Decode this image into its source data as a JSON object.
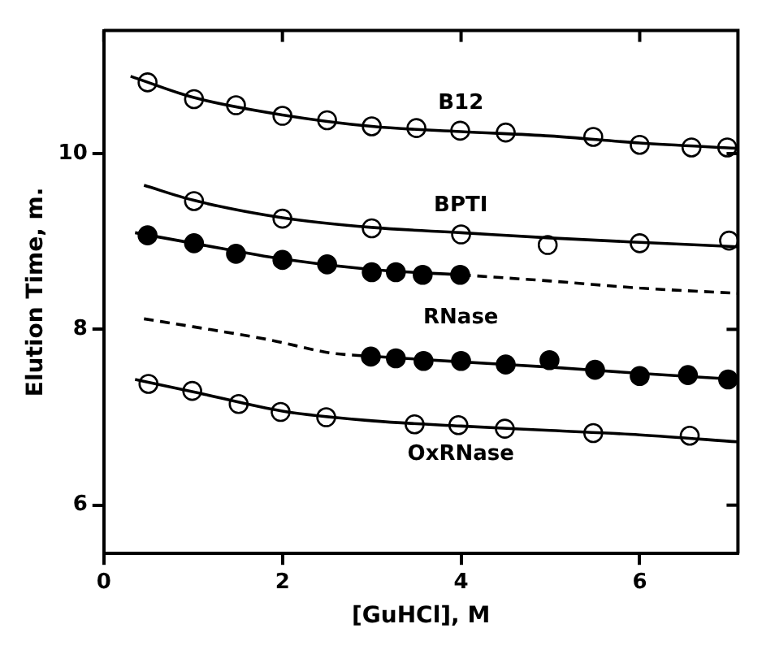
{
  "chart_data": {
    "type": "scatter",
    "xlabel": "[GuHCl], M",
    "ylabel": "Elution Time, m.",
    "xlim": [
      0,
      7.1
    ],
    "ylim": [
      5.45,
      11.4
    ],
    "xticks": [
      0,
      2,
      4,
      6
    ],
    "yticks": [
      6,
      8,
      10
    ],
    "grid": false,
    "legend": false,
    "marker": "circle",
    "series": [
      {
        "type": "scatter",
        "color": "#ffffff",
        "x": [
          0.49,
          1.01,
          1.48,
          2.0,
          2.5,
          3.0,
          3.5,
          3.99,
          4.5,
          5.48,
          6.0,
          6.58,
          6.98
        ],
        "values": [
          10.81,
          10.62,
          10.55,
          10.43,
          10.38,
          10.31,
          10.29,
          10.26,
          10.24,
          10.19,
          10.1,
          10.07,
          10.07
        ]
      },
      {
        "type": "scatter",
        "color": "#ffffff",
        "x": [
          1.01,
          2.0,
          3.0,
          4.0,
          4.97,
          6.0,
          7.0
        ],
        "values": [
          9.46,
          9.26,
          9.15,
          9.08,
          8.96,
          8.98,
          9.01
        ]
      },
      {
        "type": "scatter",
        "color": "#000000",
        "x": [
          0.49,
          1.01,
          1.48,
          2.0,
          2.5,
          3.0,
          3.27,
          3.57,
          3.99
        ],
        "values": [
          9.07,
          8.98,
          8.86,
          8.79,
          8.74,
          8.65,
          8.65,
          8.62,
          8.62
        ]
      },
      {
        "type": "scatter",
        "color": "#000000",
        "x": [
          2.99,
          3.27,
          3.58,
          4.0,
          4.5,
          4.99,
          5.5,
          6.0,
          6.54,
          6.99
        ],
        "values": [
          7.69,
          7.67,
          7.64,
          7.64,
          7.6,
          7.65,
          7.54,
          7.47,
          7.48,
          7.43
        ]
      },
      {
        "type": "scatter",
        "color": "#ffffff",
        "x": [
          0.5,
          0.99,
          1.51,
          1.98,
          2.49,
          3.48,
          3.97,
          4.49,
          5.48,
          6.56
        ],
        "values": [
          7.38,
          7.3,
          7.15,
          7.06,
          7.0,
          6.92,
          6.91,
          6.87,
          6.82,
          6.79
        ]
      },
      {
        "type": "line",
        "color": "#000000",
        "marker": "none",
        "line_style": "solid",
        "x": [
          0.3,
          1,
          2,
          3,
          4,
          5,
          6,
          7.1
        ],
        "values": [
          10.88,
          10.64,
          10.44,
          10.31,
          10.25,
          10.2,
          10.12,
          10.06
        ]
      },
      {
        "type": "line",
        "color": "#000000",
        "marker": "none",
        "line_style": "solid",
        "x": [
          0.45,
          1,
          2,
          3,
          4,
          5,
          6,
          7.1
        ],
        "values": [
          9.64,
          9.47,
          9.27,
          9.16,
          9.1,
          9.04,
          8.99,
          8.94
        ]
      },
      {
        "type": "line",
        "color": "#000000",
        "marker": "none",
        "line_style": "solid",
        "x": [
          0.35,
          1,
          2,
          3,
          4
        ],
        "values": [
          9.1,
          8.98,
          8.8,
          8.68,
          8.62
        ]
      },
      {
        "type": "line",
        "color": "#000000",
        "marker": "none",
        "line_style": "dashed",
        "x": [
          4,
          5,
          6,
          7.1
        ],
        "values": [
          8.62,
          8.55,
          8.47,
          8.41
        ]
      },
      {
        "type": "line",
        "color": "#000000",
        "marker": "none",
        "line_style": "dashed",
        "x": [
          0.45,
          1,
          1.86,
          2.55,
          2.9
        ],
        "values": [
          8.12,
          8.03,
          7.88,
          7.73,
          7.7
        ]
      },
      {
        "type": "line",
        "color": "#000000",
        "marker": "none",
        "line_style": "solid",
        "x": [
          2.9,
          4,
          5,
          6,
          7.1
        ],
        "values": [
          7.7,
          7.63,
          7.57,
          7.5,
          7.43
        ]
      },
      {
        "type": "line",
        "color": "#000000",
        "marker": "none",
        "line_style": "solid",
        "x": [
          0.35,
          1,
          2,
          3,
          4,
          5,
          6,
          7.1
        ],
        "values": [
          7.43,
          7.29,
          7.07,
          6.96,
          6.9,
          6.85,
          6.8,
          6.72
        ]
      }
    ],
    "annotations": [
      "B12",
      "BPTI",
      "RNase",
      "OxRNase"
    ]
  }
}
